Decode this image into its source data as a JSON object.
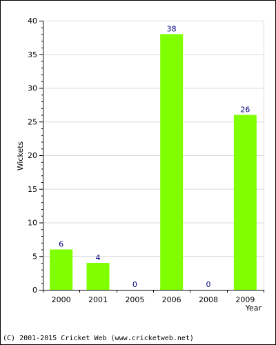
{
  "colors": {
    "bar": "#80ff00",
    "bar_label": "#000080",
    "grid": "#d8d8d8",
    "axis": "#000000",
    "text": "#000000"
  },
  "chart_data": {
    "type": "bar",
    "categories": [
      "2000",
      "2001",
      "2005",
      "2006",
      "2008",
      "2009"
    ],
    "values": [
      6,
      4,
      0,
      38,
      0,
      26
    ],
    "data_labels": [
      "6",
      "4",
      "0",
      "38",
      "0",
      "26"
    ],
    "title": "",
    "xlabel": "Year",
    "ylabel": "Wickets",
    "ylim": [
      0,
      40
    ],
    "yticks": [
      0,
      5,
      10,
      15,
      20,
      25,
      30,
      35,
      40
    ],
    "grid": true,
    "legend": "none"
  },
  "footer": {
    "copyright": "(C) 2001-2015 Cricket Web (www.cricketweb.net)"
  }
}
